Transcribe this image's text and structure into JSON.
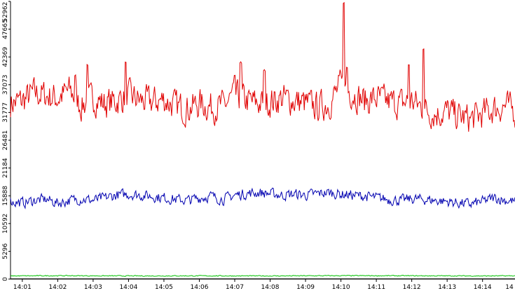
{
  "chart_data": {
    "type": "line",
    "title": "",
    "xlabel": "",
    "ylabel": "",
    "y_ticks": [
      0,
      5296,
      10592,
      15888,
      21184,
      26481,
      31777,
      37073,
      42369,
      47665,
      52962
    ],
    "y_tick_labels": [
      "0",
      "5296",
      "10592",
      "15888",
      "21184",
      "26481",
      "31777",
      "37073",
      "42369",
      "47665",
      "52962"
    ],
    "ylim": [
      0,
      52962
    ],
    "x_ticks": [
      "14:01",
      "14:02",
      "14:03",
      "14:04",
      "14:05",
      "14:06",
      "14:07",
      "14:08",
      "14:09",
      "14:10",
      "14:11",
      "14:12",
      "14:13",
      "14:14",
      "14"
    ],
    "xlim": [
      "14:00:40",
      "14:14:55"
    ],
    "grid": false,
    "legend": "none",
    "series": [
      {
        "color": "#e00000",
        "x": [
          "14:00:40",
          "14:01:00",
          "14:01:20",
          "14:01:40",
          "14:02:00",
          "14:02:20",
          "14:02:40",
          "14:03:00",
          "14:03:20",
          "14:03:40",
          "14:04:00",
          "14:04:20",
          "14:04:40",
          "14:05:00",
          "14:05:20",
          "14:05:40",
          "14:06:00",
          "14:06:20",
          "14:06:40",
          "14:07:00",
          "14:07:20",
          "14:07:40",
          "14:08:00",
          "14:08:20",
          "14:08:40",
          "14:09:00",
          "14:09:20",
          "14:09:40",
          "14:10:00",
          "14:10:20",
          "14:10:40",
          "14:11:00",
          "14:11:20",
          "14:11:40",
          "14:12:00",
          "14:12:20",
          "14:12:40",
          "14:13:00",
          "14:13:20",
          "14:13:40",
          "14:14:00",
          "14:14:20",
          "14:14:40",
          "14:14:55"
        ],
        "values": [
          33500,
          34000,
          35500,
          35000,
          34500,
          36000,
          33000,
          34500,
          33500,
          34000,
          35000,
          34000,
          33800,
          34200,
          33000,
          32500,
          33500,
          32800,
          33000,
          35000,
          34000,
          33500,
          33800,
          34500,
          34000,
          33500,
          32800,
          33500,
          37000,
          35500,
          34000,
          34500,
          33800,
          33500,
          34000,
          32500,
          31500,
          32000,
          31000,
          30500,
          31500,
          32500,
          33000,
          32000
        ],
        "spikes": [
          {
            "x": "14:02:30",
            "y": 39000
          },
          {
            "x": "14:02:50",
            "y": 41000
          },
          {
            "x": "14:03:55",
            "y": 41500
          },
          {
            "x": "14:07:00",
            "y": 39000
          },
          {
            "x": "14:07:10",
            "y": 41500
          },
          {
            "x": "14:07:50",
            "y": 40000
          },
          {
            "x": "14:10:05",
            "y": 52800
          },
          {
            "x": "14:10:10",
            "y": 40500
          },
          {
            "x": "14:11:55",
            "y": 41000
          },
          {
            "x": "14:12:20",
            "y": 44000
          }
        ]
      },
      {
        "color": "#0000b0",
        "x": [
          "14:00:40",
          "14:01:00",
          "14:01:20",
          "14:01:40",
          "14:02:00",
          "14:02:20",
          "14:02:40",
          "14:03:00",
          "14:03:20",
          "14:03:40",
          "14:04:00",
          "14:04:20",
          "14:04:40",
          "14:05:00",
          "14:05:20",
          "14:05:40",
          "14:06:00",
          "14:06:20",
          "14:06:40",
          "14:07:00",
          "14:07:20",
          "14:07:40",
          "14:08:00",
          "14:08:20",
          "14:08:40",
          "14:09:00",
          "14:09:20",
          "14:09:40",
          "14:10:00",
          "14:10:20",
          "14:10:40",
          "14:11:00",
          "14:11:20",
          "14:11:40",
          "14:12:00",
          "14:12:20",
          "14:12:40",
          "14:13:00",
          "14:13:20",
          "14:13:40",
          "14:14:00",
          "14:14:20",
          "14:14:40",
          "14:14:55"
        ],
        "values": [
          14800,
          14500,
          15000,
          15200,
          14500,
          15000,
          15300,
          15000,
          15500,
          16000,
          16200,
          16000,
          15800,
          15500,
          15200,
          15000,
          15500,
          15800,
          15200,
          16000,
          16300,
          16500,
          16300,
          16000,
          16200,
          16000,
          16300,
          16500,
          16200,
          16000,
          15800,
          15500,
          15200,
          15000,
          15300,
          15200,
          15000,
          14800,
          14500,
          14300,
          14800,
          15500,
          15000,
          14800
        ]
      },
      {
        "color": "#00c000",
        "x": [
          "14:00:40",
          "14:02:00",
          "14:04:00",
          "14:06:00",
          "14:08:00",
          "14:10:00",
          "14:12:00",
          "14:14:00",
          "14:14:55"
        ],
        "values": [
          600,
          650,
          600,
          620,
          600,
          650,
          630,
          600,
          620
        ]
      },
      {
        "color": "#000000",
        "x": [
          "14:00:40",
          "14:14:55"
        ],
        "values": [
          50,
          50
        ]
      }
    ]
  }
}
